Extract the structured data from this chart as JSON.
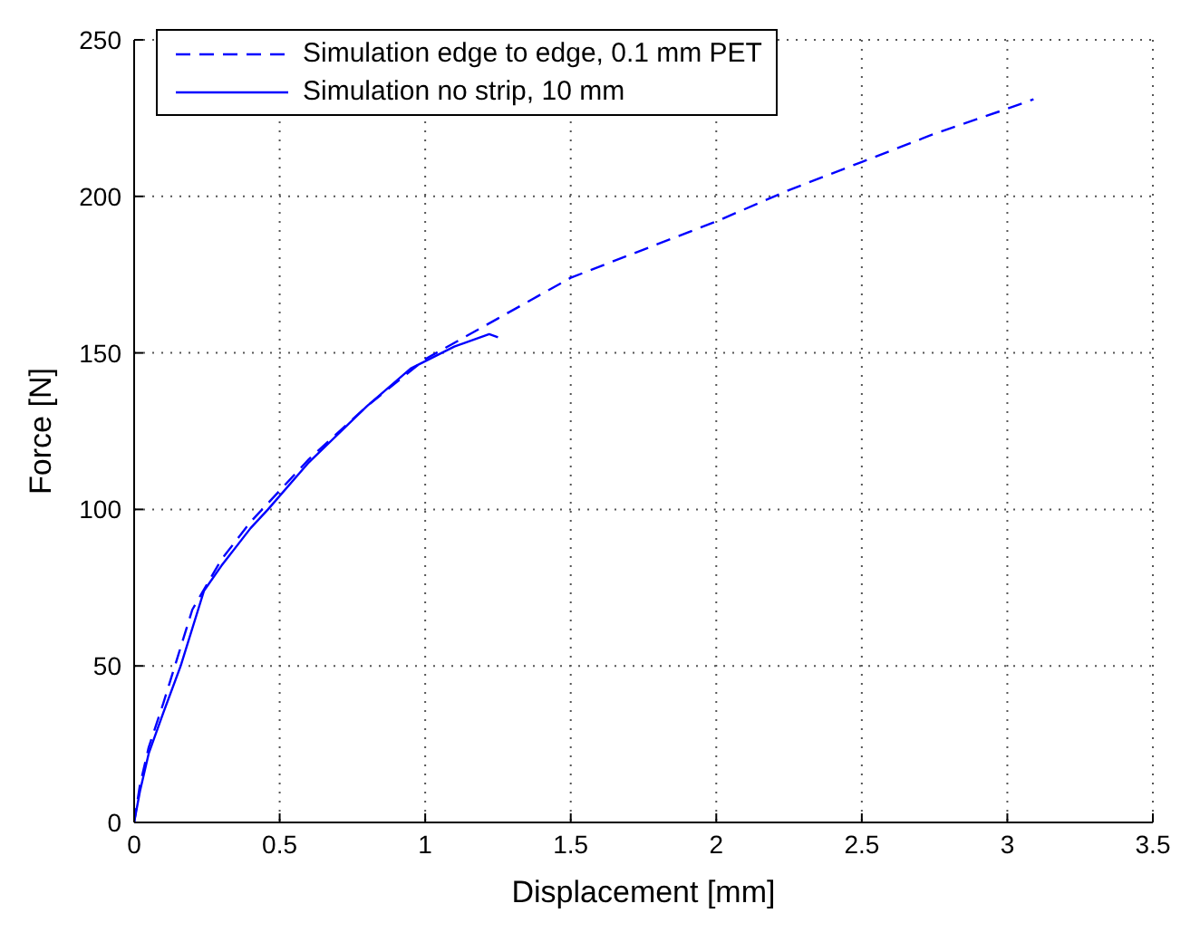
{
  "chart_data": {
    "type": "line",
    "xlabel": "Displacement [mm]",
    "ylabel": "Force [N]",
    "xlim": [
      0,
      3.5
    ],
    "ylim": [
      0,
      250
    ],
    "xticks": [
      0,
      0.5,
      1,
      1.5,
      2,
      2.5,
      3,
      3.5
    ],
    "yticks": [
      0,
      50,
      100,
      150,
      200,
      250
    ],
    "grid": true,
    "legend": "top left",
    "series": [
      {
        "name": "Simulation edge to edge, 0.1 mm PET",
        "color": "#0000ff",
        "line_style": "dashed",
        "x": [
          0,
          0.02,
          0.05,
          0.1,
          0.15,
          0.2,
          0.3,
          0.4,
          0.5,
          0.6,
          0.8,
          1,
          1.25,
          1.5,
          1.75,
          2,
          2.25,
          2.5,
          2.75,
          3,
          3.09
        ],
        "values": [
          0,
          12,
          24,
          38,
          53,
          68,
          84,
          96,
          106,
          116,
          133,
          148,
          161,
          174,
          183,
          192,
          202,
          211,
          220,
          228,
          231
        ]
      },
      {
        "name": "Simulation no strip, 10 mm",
        "color": "#0000ff",
        "line_style": "solid",
        "x": [
          0,
          0.02,
          0.05,
          0.1,
          0.16,
          0.24,
          0.3,
          0.4,
          0.46,
          0.6,
          0.8,
          0.95,
          1.1,
          1.22,
          1.25
        ],
        "values": [
          0,
          10,
          22,
          35,
          50,
          74,
          82,
          94,
          100,
          115,
          133,
          145,
          152,
          156,
          155
        ]
      }
    ]
  }
}
